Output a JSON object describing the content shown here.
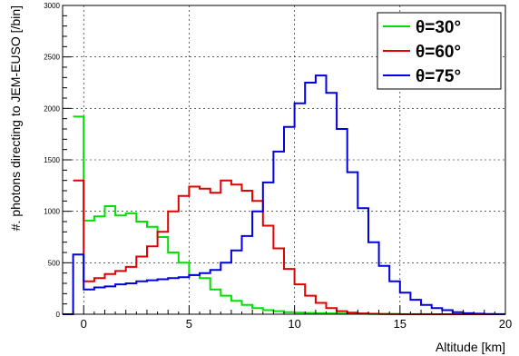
{
  "chart_data": {
    "type": "line",
    "xlabel": "Altitude [km]",
    "ylabel": "#. photons directing to JEM-EUSO [/bin]",
    "xlim": [
      -1,
      20
    ],
    "ylim": [
      0,
      3000
    ],
    "xticks": [
      0,
      5,
      10,
      15,
      20
    ],
    "yticks": [
      0,
      500,
      1000,
      1500,
      2000,
      2500,
      3000
    ],
    "bin_width": 0.5,
    "grid": true,
    "legend_position": "top-right",
    "series": [
      {
        "name": "θ=30°",
        "color": "#00e000",
        "bin_edges_start": -0.5,
        "values": [
          1920,
          910,
          950,
          1050,
          960,
          980,
          900,
          850,
          750,
          600,
          500,
          380,
          350,
          240,
          180,
          130,
          90,
          60,
          40,
          30,
          20,
          15,
          12,
          10,
          8,
          6,
          5,
          4,
          3,
          2,
          2,
          1,
          1,
          1,
          0,
          0,
          0,
          0,
          0,
          0,
          0
        ]
      },
      {
        "name": "θ=60°",
        "color": "#e00000",
        "bin_edges_start": -0.5,
        "values": [
          1300,
          320,
          350,
          390,
          420,
          460,
          560,
          660,
          800,
          1000,
          1150,
          1240,
          1220,
          1180,
          1300,
          1260,
          1200,
          1100,
          860,
          640,
          440,
          290,
          180,
          110,
          60,
          30,
          15,
          8,
          4,
          2,
          1,
          0,
          0,
          0,
          0,
          0,
          0,
          0,
          0,
          0,
          0
        ]
      },
      {
        "name": "θ=75°",
        "color": "#0000e0",
        "bin_edges_start": -1.0,
        "values": [
          0,
          580,
          240,
          260,
          270,
          290,
          300,
          320,
          330,
          340,
          350,
          360,
          380,
          400,
          430,
          500,
          620,
          760,
          1000,
          1280,
          1580,
          1820,
          2050,
          2250,
          2320,
          2150,
          1800,
          1380,
          1030,
          700,
          470,
          320,
          210,
          140,
          90,
          60,
          40,
          20,
          10,
          5,
          3,
          1
        ]
      }
    ]
  }
}
